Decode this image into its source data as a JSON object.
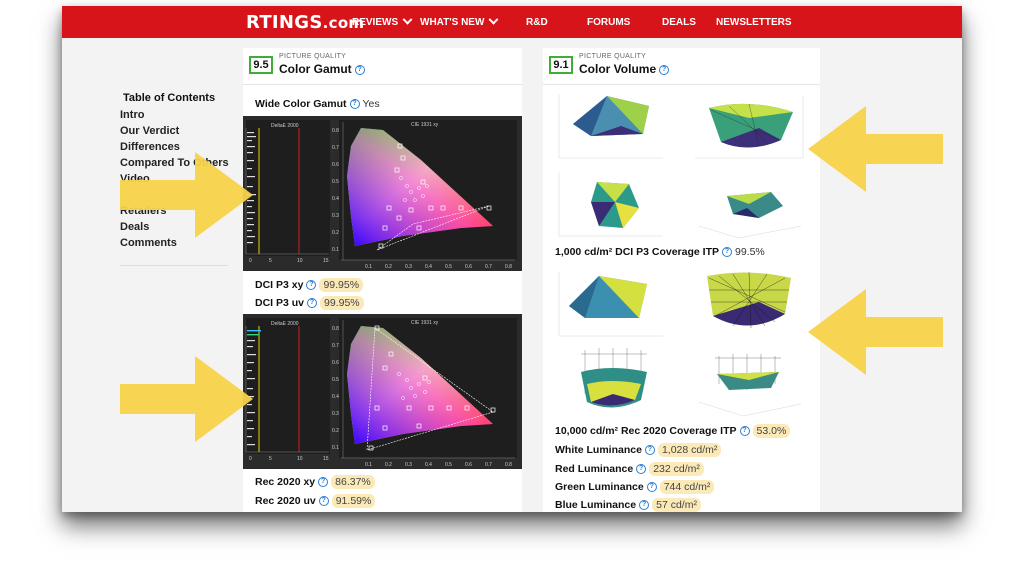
{
  "brand": {
    "logo": "RTINGS",
    "logo_suffix": ".com"
  },
  "nav": [
    {
      "label": "REVIEWS",
      "dropdown": true
    },
    {
      "label": "WHAT'S NEW",
      "dropdown": true
    },
    {
      "label": "R&D",
      "dropdown": false
    },
    {
      "label": "FORUMS",
      "dropdown": false
    },
    {
      "label": "DEALS",
      "dropdown": false
    },
    {
      "label": "NEWSLETTERS",
      "dropdown": false
    }
  ],
  "toc": {
    "title": "Table of Contents",
    "items": [
      "Intro",
      "Our Verdict",
      "Differences",
      "Compared To Others",
      "Video",
      "",
      "Retailers",
      "Deals",
      "Comments"
    ]
  },
  "left_card": {
    "score": "9.5",
    "category": "PICTURE QUALITY",
    "title": "Color Gamut",
    "wide_label": "Wide Color Gamut",
    "wide_value": "Yes",
    "chart_left_title": "DeltaE 2000",
    "chart_right_title": "CIE 1931 xy",
    "left_ticks": [
      "0",
      "5",
      "10",
      "15"
    ],
    "x_ticks": [
      "0.1",
      "0.2",
      "0.3",
      "0.4",
      "0.5",
      "0.6",
      "0.7",
      "0.8"
    ],
    "y_ticks": [
      "0.8",
      "0.7",
      "0.6",
      "0.5",
      "0.4",
      "0.3",
      "0.2",
      "0.1"
    ],
    "metrics_top": [
      {
        "label": "DCI P3 xy",
        "value": "99.95%"
      },
      {
        "label": "DCI P3 uv",
        "value": "99.95%"
      }
    ],
    "metrics_bottom": [
      {
        "label": "Rec 2020 xy",
        "value": "86.37%"
      },
      {
        "label": "Rec 2020 uv",
        "value": "91.59%"
      }
    ]
  },
  "right_card": {
    "score": "9.1",
    "category": "PICTURE QUALITY",
    "title": "Color Volume",
    "coverage1_label": "1,000 cd/m² DCI P3 Coverage ITP",
    "coverage1_value": "99.5%",
    "coverage2_label": "10,000 cd/m² Rec 2020 Coverage ITP",
    "coverage2_value": "53.0%",
    "luminance": [
      {
        "label": "White Luminance",
        "value": "1,028 cd/m²"
      },
      {
        "label": "Red Luminance",
        "value": "232 cd/m²"
      },
      {
        "label": "Green Luminance",
        "value": "744 cd/m²"
      },
      {
        "label": "Blue Luminance",
        "value": "57 cd/m²"
      }
    ]
  },
  "colors": {
    "header_red": "#d8141b",
    "score_border": "#3fae37",
    "highlight": "#fbe9b8",
    "help_blue": "#2a7fd4",
    "arrow_yellow": "#f8d24a"
  }
}
